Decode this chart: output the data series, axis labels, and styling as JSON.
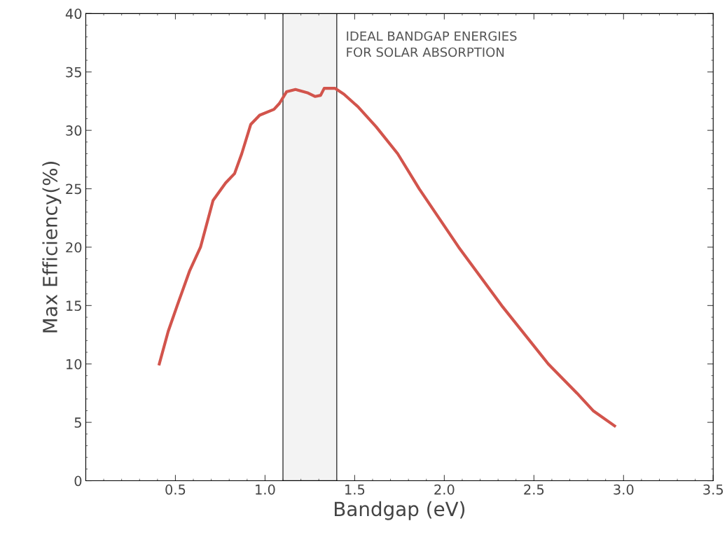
{
  "chart_data": {
    "type": "line",
    "xlabel": "Bandgap (eV)",
    "ylabel": "Max Efficiency(%)",
    "x": [
      0.41,
      0.46,
      0.51,
      0.58,
      0.64,
      0.71,
      0.78,
      0.83,
      0.87,
      0.92,
      0.97,
      1.05,
      1.08,
      1.12,
      1.17,
      1.24,
      1.28,
      1.31,
      1.33,
      1.39,
      1.44,
      1.52,
      1.62,
      1.74,
      1.86,
      2.08,
      2.32,
      2.58,
      2.74,
      2.83,
      2.95
    ],
    "series": [
      {
        "color": "#d2544c",
        "values": [
          10.0,
          12.8,
          15.0,
          18.0,
          20.0,
          24.0,
          25.5,
          26.3,
          28.0,
          30.5,
          31.3,
          31.8,
          32.3,
          33.3,
          33.5,
          33.2,
          32.9,
          33.0,
          33.6,
          33.6,
          33.1,
          32.0,
          30.3,
          28.0,
          25.0,
          20.0,
          15.0,
          10.0,
          7.5,
          6.0,
          4.7
        ]
      }
    ],
    "bands": [
      {
        "axis": "x",
        "from": 1.1,
        "to": 1.4,
        "label": "IDEAL BANDGAP ENERGIES\nFOR SOLAR ABSORPTION",
        "color": "#f3f3f3"
      }
    ],
    "xlim": [
      0,
      3.5
    ],
    "ylim": [
      0,
      40
    ],
    "xticks": [
      0.5,
      {
        "value": 1,
        "label": "1.0"
      },
      1.5,
      {
        "value": 2,
        "label": "2.0"
      },
      2.5,
      {
        "value": 3,
        "label": "3.0"
      },
      3.5
    ],
    "yticks": [
      0,
      5,
      10,
      15,
      20,
      25,
      30,
      35,
      40
    ],
    "grid": false,
    "legend": false
  }
}
